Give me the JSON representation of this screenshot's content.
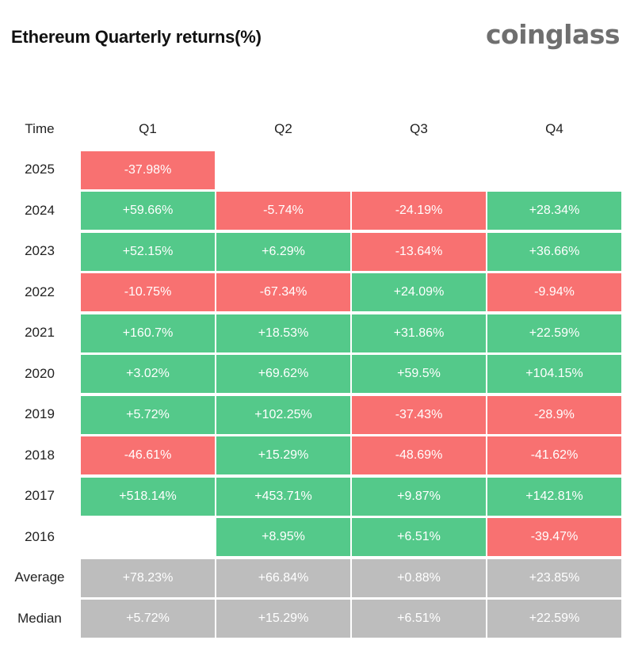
{
  "title": "Ethereum Quarterly returns(%)",
  "brand": "coinglass",
  "colors": {
    "positive": "#54c98a",
    "negative": "#f87171",
    "summary": "#bdbdbd"
  },
  "chart_data": {
    "type": "table",
    "title": "Ethereum Quarterly returns(%)",
    "row_header": "Time",
    "columns": [
      "Q1",
      "Q2",
      "Q3",
      "Q4"
    ],
    "rows": [
      {
        "label": "2025",
        "values": [
          "-37.98%",
          "",
          "",
          ""
        ]
      },
      {
        "label": "2024",
        "values": [
          "+59.66%",
          "-5.74%",
          "-24.19%",
          "+28.34%"
        ]
      },
      {
        "label": "2023",
        "values": [
          "+52.15%",
          "+6.29%",
          "-13.64%",
          "+36.66%"
        ]
      },
      {
        "label": "2022",
        "values": [
          "-10.75%",
          "-67.34%",
          "+24.09%",
          "-9.94%"
        ]
      },
      {
        "label": "2021",
        "values": [
          "+160.7%",
          "+18.53%",
          "+31.86%",
          "+22.59%"
        ]
      },
      {
        "label": "2020",
        "values": [
          "+3.02%",
          "+69.62%",
          "+59.5%",
          "+104.15%"
        ]
      },
      {
        "label": "2019",
        "values": [
          "+5.72%",
          "+102.25%",
          "-37.43%",
          "-28.9%"
        ]
      },
      {
        "label": "2018",
        "values": [
          "-46.61%",
          "+15.29%",
          "-48.69%",
          "-41.62%"
        ]
      },
      {
        "label": "2017",
        "values": [
          "+518.14%",
          "+453.71%",
          "+9.87%",
          "+142.81%"
        ]
      },
      {
        "label": "2016",
        "values": [
          "",
          "+8.95%",
          "+6.51%",
          "-39.47%"
        ]
      }
    ],
    "summary_rows": [
      {
        "label": "Average",
        "values": [
          "+78.23%",
          "+66.84%",
          "+0.88%",
          "+23.85%"
        ]
      },
      {
        "label": "Median",
        "values": [
          "+5.72%",
          "+15.29%",
          "+6.51%",
          "+22.59%"
        ]
      }
    ]
  }
}
